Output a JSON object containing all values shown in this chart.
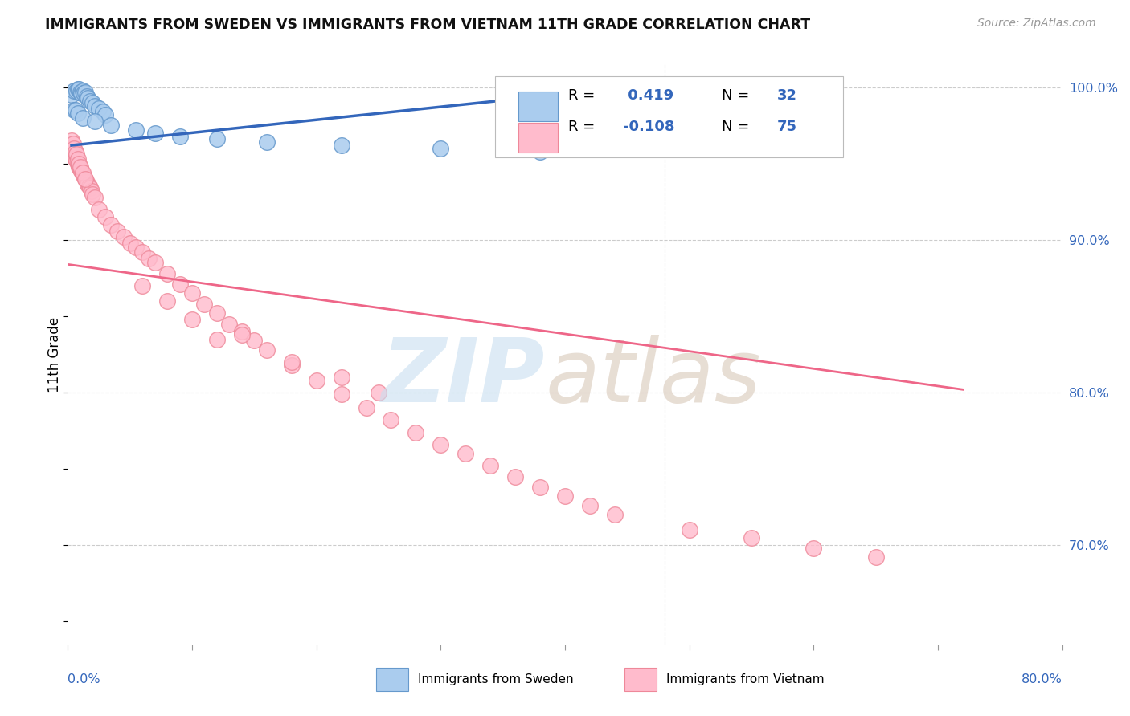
{
  "title": "IMMIGRANTS FROM SWEDEN VS IMMIGRANTS FROM VIETNAM 11TH GRADE CORRELATION CHART",
  "source": "Source: ZipAtlas.com",
  "ylabel": "11th Grade",
  "xlim": [
    0.0,
    0.8
  ],
  "ylim": [
    0.635,
    1.015
  ],
  "sweden_color": "#aaccee",
  "sweden_edge": "#6699cc",
  "vietnam_color": "#ffbbcc",
  "vietnam_edge": "#ee8899",
  "sweden_line_color": "#3366bb",
  "vietnam_line_color": "#ee6688",
  "sweden_R": 0.419,
  "sweden_N": 32,
  "vietnam_R": -0.108,
  "vietnam_N": 75,
  "label_color": "#3366bb",
  "ytick_positions": [
    1.0,
    0.9,
    0.8,
    0.7
  ],
  "ytick_labels": [
    "100.0%",
    "90.0%",
    "80.0%",
    "70.0%"
  ],
  "grid_color": "#cccccc",
  "sweden_x": [
    0.003,
    0.005,
    0.007,
    0.008,
    0.009,
    0.01,
    0.011,
    0.012,
    0.013,
    0.014,
    0.015,
    0.016,
    0.018,
    0.02,
    0.022,
    0.025,
    0.028,
    0.03,
    0.005,
    0.006,
    0.008,
    0.012,
    0.022,
    0.035,
    0.055,
    0.07,
    0.09,
    0.12,
    0.16,
    0.22,
    0.3,
    0.38
  ],
  "sweden_y": [
    0.995,
    0.998,
    0.998,
    0.999,
    0.999,
    0.997,
    0.996,
    0.998,
    0.996,
    0.997,
    0.994,
    0.993,
    0.991,
    0.99,
    0.988,
    0.986,
    0.984,
    0.982,
    0.985,
    0.985,
    0.983,
    0.98,
    0.978,
    0.975,
    0.972,
    0.97,
    0.968,
    0.966,
    0.964,
    0.962,
    0.96,
    0.958
  ],
  "vietnam_x": [
    0.002,
    0.003,
    0.004,
    0.005,
    0.006,
    0.007,
    0.008,
    0.009,
    0.01,
    0.011,
    0.012,
    0.013,
    0.014,
    0.015,
    0.016,
    0.017,
    0.018,
    0.019,
    0.02,
    0.022,
    0.003,
    0.004,
    0.005,
    0.006,
    0.007,
    0.008,
    0.009,
    0.01,
    0.012,
    0.014,
    0.025,
    0.03,
    0.035,
    0.04,
    0.045,
    0.05,
    0.055,
    0.06,
    0.065,
    0.07,
    0.08,
    0.09,
    0.1,
    0.11,
    0.12,
    0.13,
    0.14,
    0.15,
    0.16,
    0.18,
    0.2,
    0.22,
    0.24,
    0.26,
    0.28,
    0.3,
    0.32,
    0.34,
    0.36,
    0.38,
    0.4,
    0.42,
    0.44,
    0.5,
    0.55,
    0.6,
    0.65,
    0.12,
    0.18,
    0.25,
    0.06,
    0.08,
    0.1,
    0.14,
    0.22
  ],
  "vietnam_y": [
    0.96,
    0.958,
    0.956,
    0.955,
    0.953,
    0.952,
    0.95,
    0.948,
    0.946,
    0.945,
    0.943,
    0.942,
    0.94,
    0.938,
    0.936,
    0.935,
    0.934,
    0.932,
    0.93,
    0.928,
    0.965,
    0.963,
    0.96,
    0.958,
    0.956,
    0.953,
    0.95,
    0.948,
    0.944,
    0.94,
    0.92,
    0.915,
    0.91,
    0.906,
    0.902,
    0.898,
    0.895,
    0.892,
    0.888,
    0.885,
    0.878,
    0.871,
    0.865,
    0.858,
    0.852,
    0.845,
    0.84,
    0.834,
    0.828,
    0.818,
    0.808,
    0.799,
    0.79,
    0.782,
    0.774,
    0.766,
    0.76,
    0.752,
    0.745,
    0.738,
    0.732,
    0.726,
    0.72,
    0.71,
    0.705,
    0.698,
    0.692,
    0.835,
    0.82,
    0.8,
    0.87,
    0.86,
    0.848,
    0.838,
    0.81
  ],
  "sweden_trend_x": [
    0.003,
    0.38
  ],
  "sweden_trend_y": [
    0.962,
    0.994
  ],
  "vietnam_trend_x": [
    0.0,
    0.72
  ],
  "vietnam_trend_y": [
    0.884,
    0.802
  ]
}
